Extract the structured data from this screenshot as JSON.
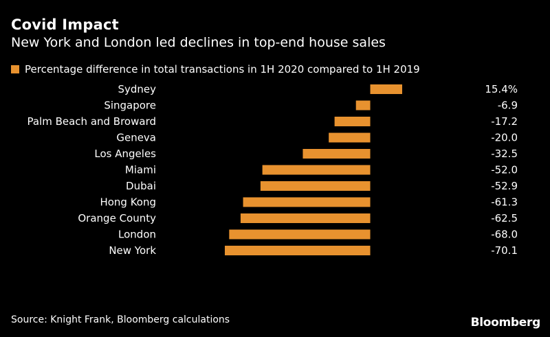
{
  "title": "Covid Impact",
  "subtitle": "New York and London led declines in top-end house sales",
  "source": "Source: Knight Frank, Bloomberg calculations",
  "brand": "Bloomberg",
  "colors": {
    "bar": "#E8922F",
    "background": "#000000",
    "text": "#FFFFFF"
  },
  "chart_data": {
    "type": "bar",
    "orientation": "horizontal",
    "categories": [
      "Sydney",
      "Singapore",
      "Palm Beach and Broward",
      "Geneva",
      "Los Angeles",
      "Miami",
      "Dubai",
      "Hong Kong",
      "Orange County",
      "London",
      "New York"
    ],
    "series": [
      {
        "name": "Percentage difference in total transactions in 1H 2020 compared to 1H 2019",
        "values": [
          15.4,
          -6.9,
          -17.2,
          -20.0,
          -32.5,
          -52.0,
          -52.9,
          -61.3,
          -62.5,
          -68.0,
          -70.1
        ]
      }
    ],
    "data_labels": [
      "15.4%",
      "-6.9",
      "-17.2",
      "-20.0",
      "-32.5",
      "-52.0",
      "-52.9",
      "-61.3",
      "-62.5",
      "-68.0",
      "-70.1"
    ],
    "xlim": [
      -70.1,
      15.4
    ],
    "grid": false,
    "legend_position": "top-left"
  }
}
